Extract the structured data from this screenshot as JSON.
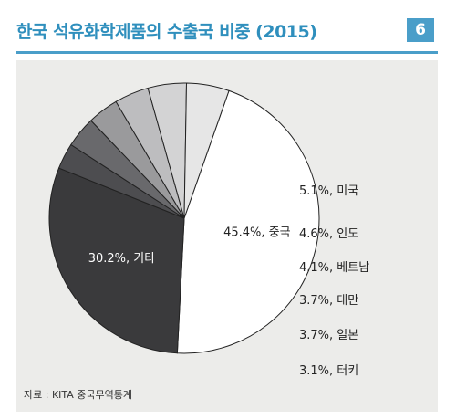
{
  "header": {
    "title": "한국 석유화학제품의 수출국 비중 (2015)",
    "badge": "6"
  },
  "source": "자료 : KITA 중국무역통계",
  "chart_data": {
    "type": "pie",
    "title": "한국 석유화학제품의 수출국 비중 (2015)",
    "slices": [
      {
        "label": "45.4%, 중국",
        "name": "중국",
        "value": 45.4,
        "color": "#ffffff",
        "label_color": "#222222"
      },
      {
        "label": "30.2%, 기타",
        "name": "기타",
        "value": 30.2,
        "color": "#3a3a3c",
        "label_color": "#ffffff"
      },
      {
        "label": "3.1%, 터키",
        "name": "터키",
        "value": 3.1,
        "color": "#4d4d50",
        "label_color": "#222222"
      },
      {
        "label": "3.7%, 일본",
        "name": "일본",
        "value": 3.7,
        "color": "#69696c",
        "label_color": "#222222"
      },
      {
        "label": "3.7%, 대만",
        "name": "대만",
        "value": 3.7,
        "color": "#9a9a9c",
        "label_color": "#222222"
      },
      {
        "label": "4.1%, 베트남",
        "name": "베트남",
        "value": 4.1,
        "color": "#bdbdbf",
        "label_color": "#222222"
      },
      {
        "label": "4.6%, 인도",
        "name": "인도",
        "value": 4.6,
        "color": "#d3d3d4",
        "label_color": "#222222"
      },
      {
        "label": "5.1%, 미국",
        "name": "미국",
        "value": 5.1,
        "color": "#e6e6e6",
        "label_color": "#222222"
      }
    ]
  }
}
